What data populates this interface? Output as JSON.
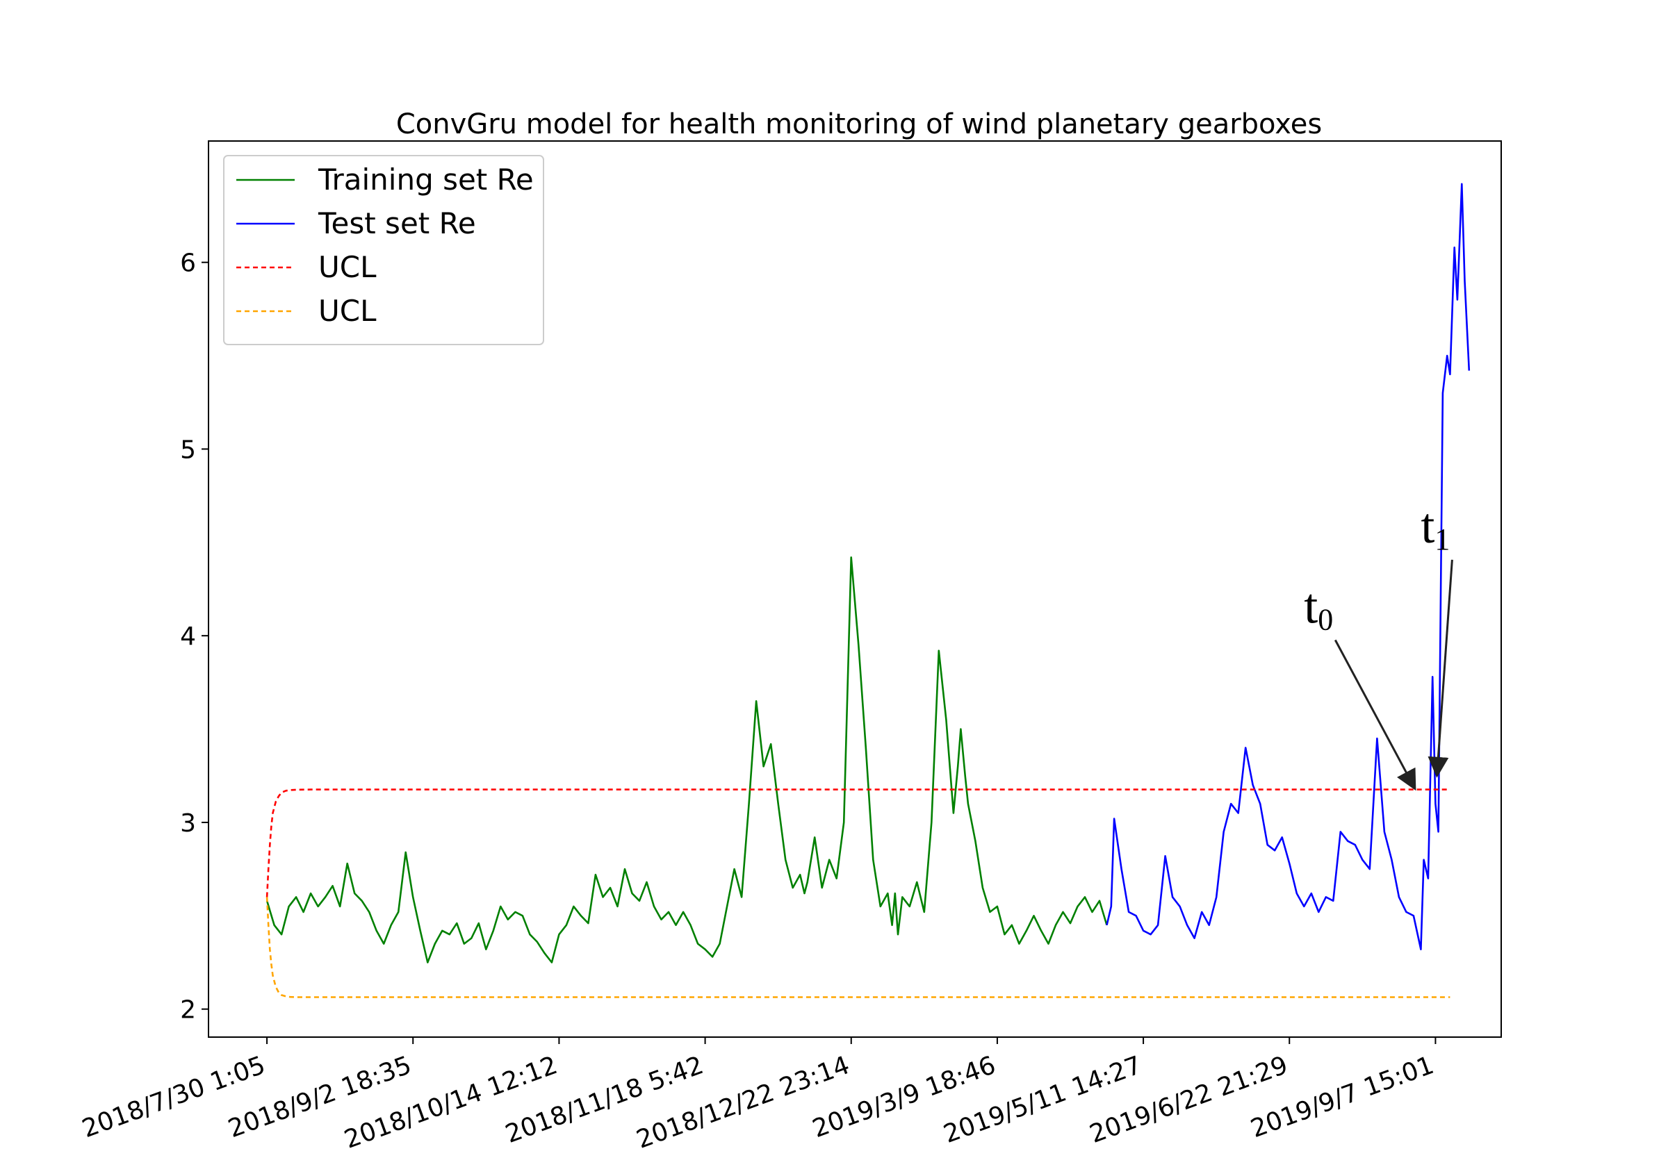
{
  "chart_data": {
    "type": "line",
    "title": "ConvGru model for health monitoring of wind planetary gearboxes",
    "xlabel": "",
    "ylabel": "",
    "ylim": [
      1.85,
      6.65
    ],
    "yticks": [
      2,
      3,
      4,
      5,
      6
    ],
    "xlim": [
      -40,
      845
    ],
    "xtick_positions": [
      0,
      100,
      200,
      300,
      400,
      500,
      600,
      700,
      800
    ],
    "xtick_labels": [
      "2018/7/30 1:05",
      "2018/9/2 18:35",
      "2018/10/14 12:12",
      "2018/11/18 5:42",
      "2018/12/22 23:14",
      "2019/3/9 18:46",
      "2019/5/11 14:27",
      "2019/6/22 21:29",
      "2019/9/7 15:01"
    ],
    "grid": false,
    "legend_position": "top-left",
    "series": [
      {
        "name": "Training set Re",
        "color": "#008000",
        "style": "solid",
        "x": [
          0,
          5,
          10,
          15,
          20,
          25,
          30,
          35,
          40,
          45,
          50,
          55,
          60,
          65,
          70,
          75,
          80,
          85,
          90,
          95,
          100,
          105,
          110,
          115,
          120,
          125,
          130,
          135,
          140,
          145,
          150,
          155,
          160,
          165,
          170,
          175,
          180,
          185,
          190,
          195,
          200,
          205,
          210,
          215,
          220,
          225,
          230,
          235,
          240,
          245,
          250,
          255,
          260,
          265,
          270,
          275,
          280,
          285,
          290,
          295,
          300,
          305,
          310,
          315,
          320,
          325,
          330,
          335,
          340,
          345,
          350,
          355,
          360,
          365,
          368,
          370,
          375,
          380,
          385,
          390,
          395,
          400,
          405,
          410,
          415,
          420,
          425,
          428,
          430,
          432,
          435,
          440,
          445,
          450,
          455,
          460,
          465,
          470,
          473,
          475,
          478,
          480,
          485,
          490,
          495,
          500,
          505,
          510,
          515,
          520,
          525,
          530,
          535,
          540,
          545,
          550,
          555,
          560,
          565,
          570,
          575
        ],
        "y": [
          2.58,
          2.45,
          2.4,
          2.55,
          2.6,
          2.52,
          2.62,
          2.55,
          2.6,
          2.66,
          2.55,
          2.78,
          2.62,
          2.58,
          2.52,
          2.42,
          2.35,
          2.45,
          2.52,
          2.84,
          2.6,
          2.42,
          2.25,
          2.35,
          2.42,
          2.4,
          2.46,
          2.35,
          2.38,
          2.46,
          2.32,
          2.42,
          2.55,
          2.48,
          2.52,
          2.5,
          2.4,
          2.36,
          2.3,
          2.25,
          2.4,
          2.45,
          2.55,
          2.5,
          2.46,
          2.72,
          2.6,
          2.65,
          2.55,
          2.75,
          2.62,
          2.58,
          2.68,
          2.55,
          2.48,
          2.52,
          2.45,
          2.52,
          2.45,
          2.35,
          2.32,
          2.28,
          2.35,
          2.55,
          2.75,
          2.6,
          3.1,
          3.65,
          3.3,
          3.42,
          3.1,
          2.8,
          2.65,
          2.72,
          2.62,
          2.68,
          2.92,
          2.65,
          2.8,
          2.7,
          3.0,
          4.42,
          3.95,
          3.4,
          2.8,
          2.55,
          2.62,
          2.45,
          2.62,
          2.4,
          2.6,
          2.55,
          2.68,
          2.52,
          3.0,
          3.92,
          3.55,
          3.05,
          3.3,
          3.5,
          3.25,
          3.1,
          2.9,
          2.65,
          2.52,
          2.55,
          2.4,
          2.45,
          2.35,
          2.42,
          2.5,
          2.42,
          2.35,
          2.45,
          2.52,
          2.46,
          2.55,
          2.6,
          2.52,
          2.58,
          2.45
        ]
      },
      {
        "name": "Test set Re",
        "color": "#0000ff",
        "style": "solid",
        "x": [
          575,
          578,
          580,
          585,
          590,
          595,
          600,
          605,
          610,
          615,
          620,
          625,
          630,
          635,
          640,
          645,
          650,
          655,
          660,
          665,
          670,
          675,
          680,
          685,
          690,
          695,
          700,
          705,
          710,
          715,
          720,
          725,
          730,
          735,
          740,
          745,
          750,
          755,
          760,
          765,
          770,
          775,
          780,
          785,
          790,
          792,
          795,
          798,
          800,
          802,
          805,
          808,
          810,
          813,
          815,
          818,
          820,
          823
        ],
        "y": [
          2.45,
          2.55,
          3.02,
          2.75,
          2.52,
          2.5,
          2.42,
          2.4,
          2.45,
          2.82,
          2.6,
          2.55,
          2.45,
          2.38,
          2.52,
          2.45,
          2.6,
          2.95,
          3.1,
          3.05,
          3.4,
          3.2,
          3.1,
          2.88,
          2.85,
          2.92,
          2.78,
          2.62,
          2.55,
          2.62,
          2.52,
          2.6,
          2.58,
          2.95,
          2.9,
          2.88,
          2.8,
          2.75,
          3.45,
          2.95,
          2.8,
          2.6,
          2.52,
          2.5,
          2.32,
          2.8,
          2.7,
          3.78,
          3.1,
          2.95,
          5.3,
          5.5,
          5.4,
          6.08,
          5.8,
          6.42,
          5.9,
          5.42
        ]
      },
      {
        "name": "UCL",
        "color": "#ff0000",
        "style": "dashed",
        "x": [
          0,
          1,
          2,
          3,
          4,
          6,
          8,
          10,
          13,
          16,
          20,
          30,
          40,
          100,
          200,
          300,
          400,
          500,
          600,
          700,
          810
        ],
        "y": [
          2.6,
          2.75,
          2.88,
          2.98,
          3.05,
          3.11,
          3.14,
          3.16,
          3.17,
          3.173,
          3.175,
          3.176,
          3.176,
          3.176,
          3.176,
          3.176,
          3.176,
          3.176,
          3.176,
          3.176,
          3.176
        ]
      },
      {
        "name": "UCL",
        "color": "#ffa500",
        "style": "dashed",
        "x": [
          0,
          1,
          2,
          3,
          4,
          6,
          8,
          10,
          13,
          16,
          20,
          30,
          40,
          100,
          200,
          300,
          400,
          500,
          600,
          700,
          810
        ],
        "y": [
          2.6,
          2.45,
          2.32,
          2.24,
          2.18,
          2.12,
          2.09,
          2.075,
          2.068,
          2.065,
          2.064,
          2.064,
          2.064,
          2.064,
          2.064,
          2.064,
          2.064,
          2.064,
          2.064,
          2.064,
          2.064
        ]
      }
    ],
    "annotations": [
      {
        "text": "t",
        "subscript": "0",
        "text_x": 710,
        "text_y": 4.07,
        "point_x": 786,
        "point_y": 3.18
      },
      {
        "text": "t",
        "subscript": "1",
        "text_x": 790,
        "text_y": 4.5,
        "point_x": 801,
        "point_y": 3.25
      }
    ]
  }
}
